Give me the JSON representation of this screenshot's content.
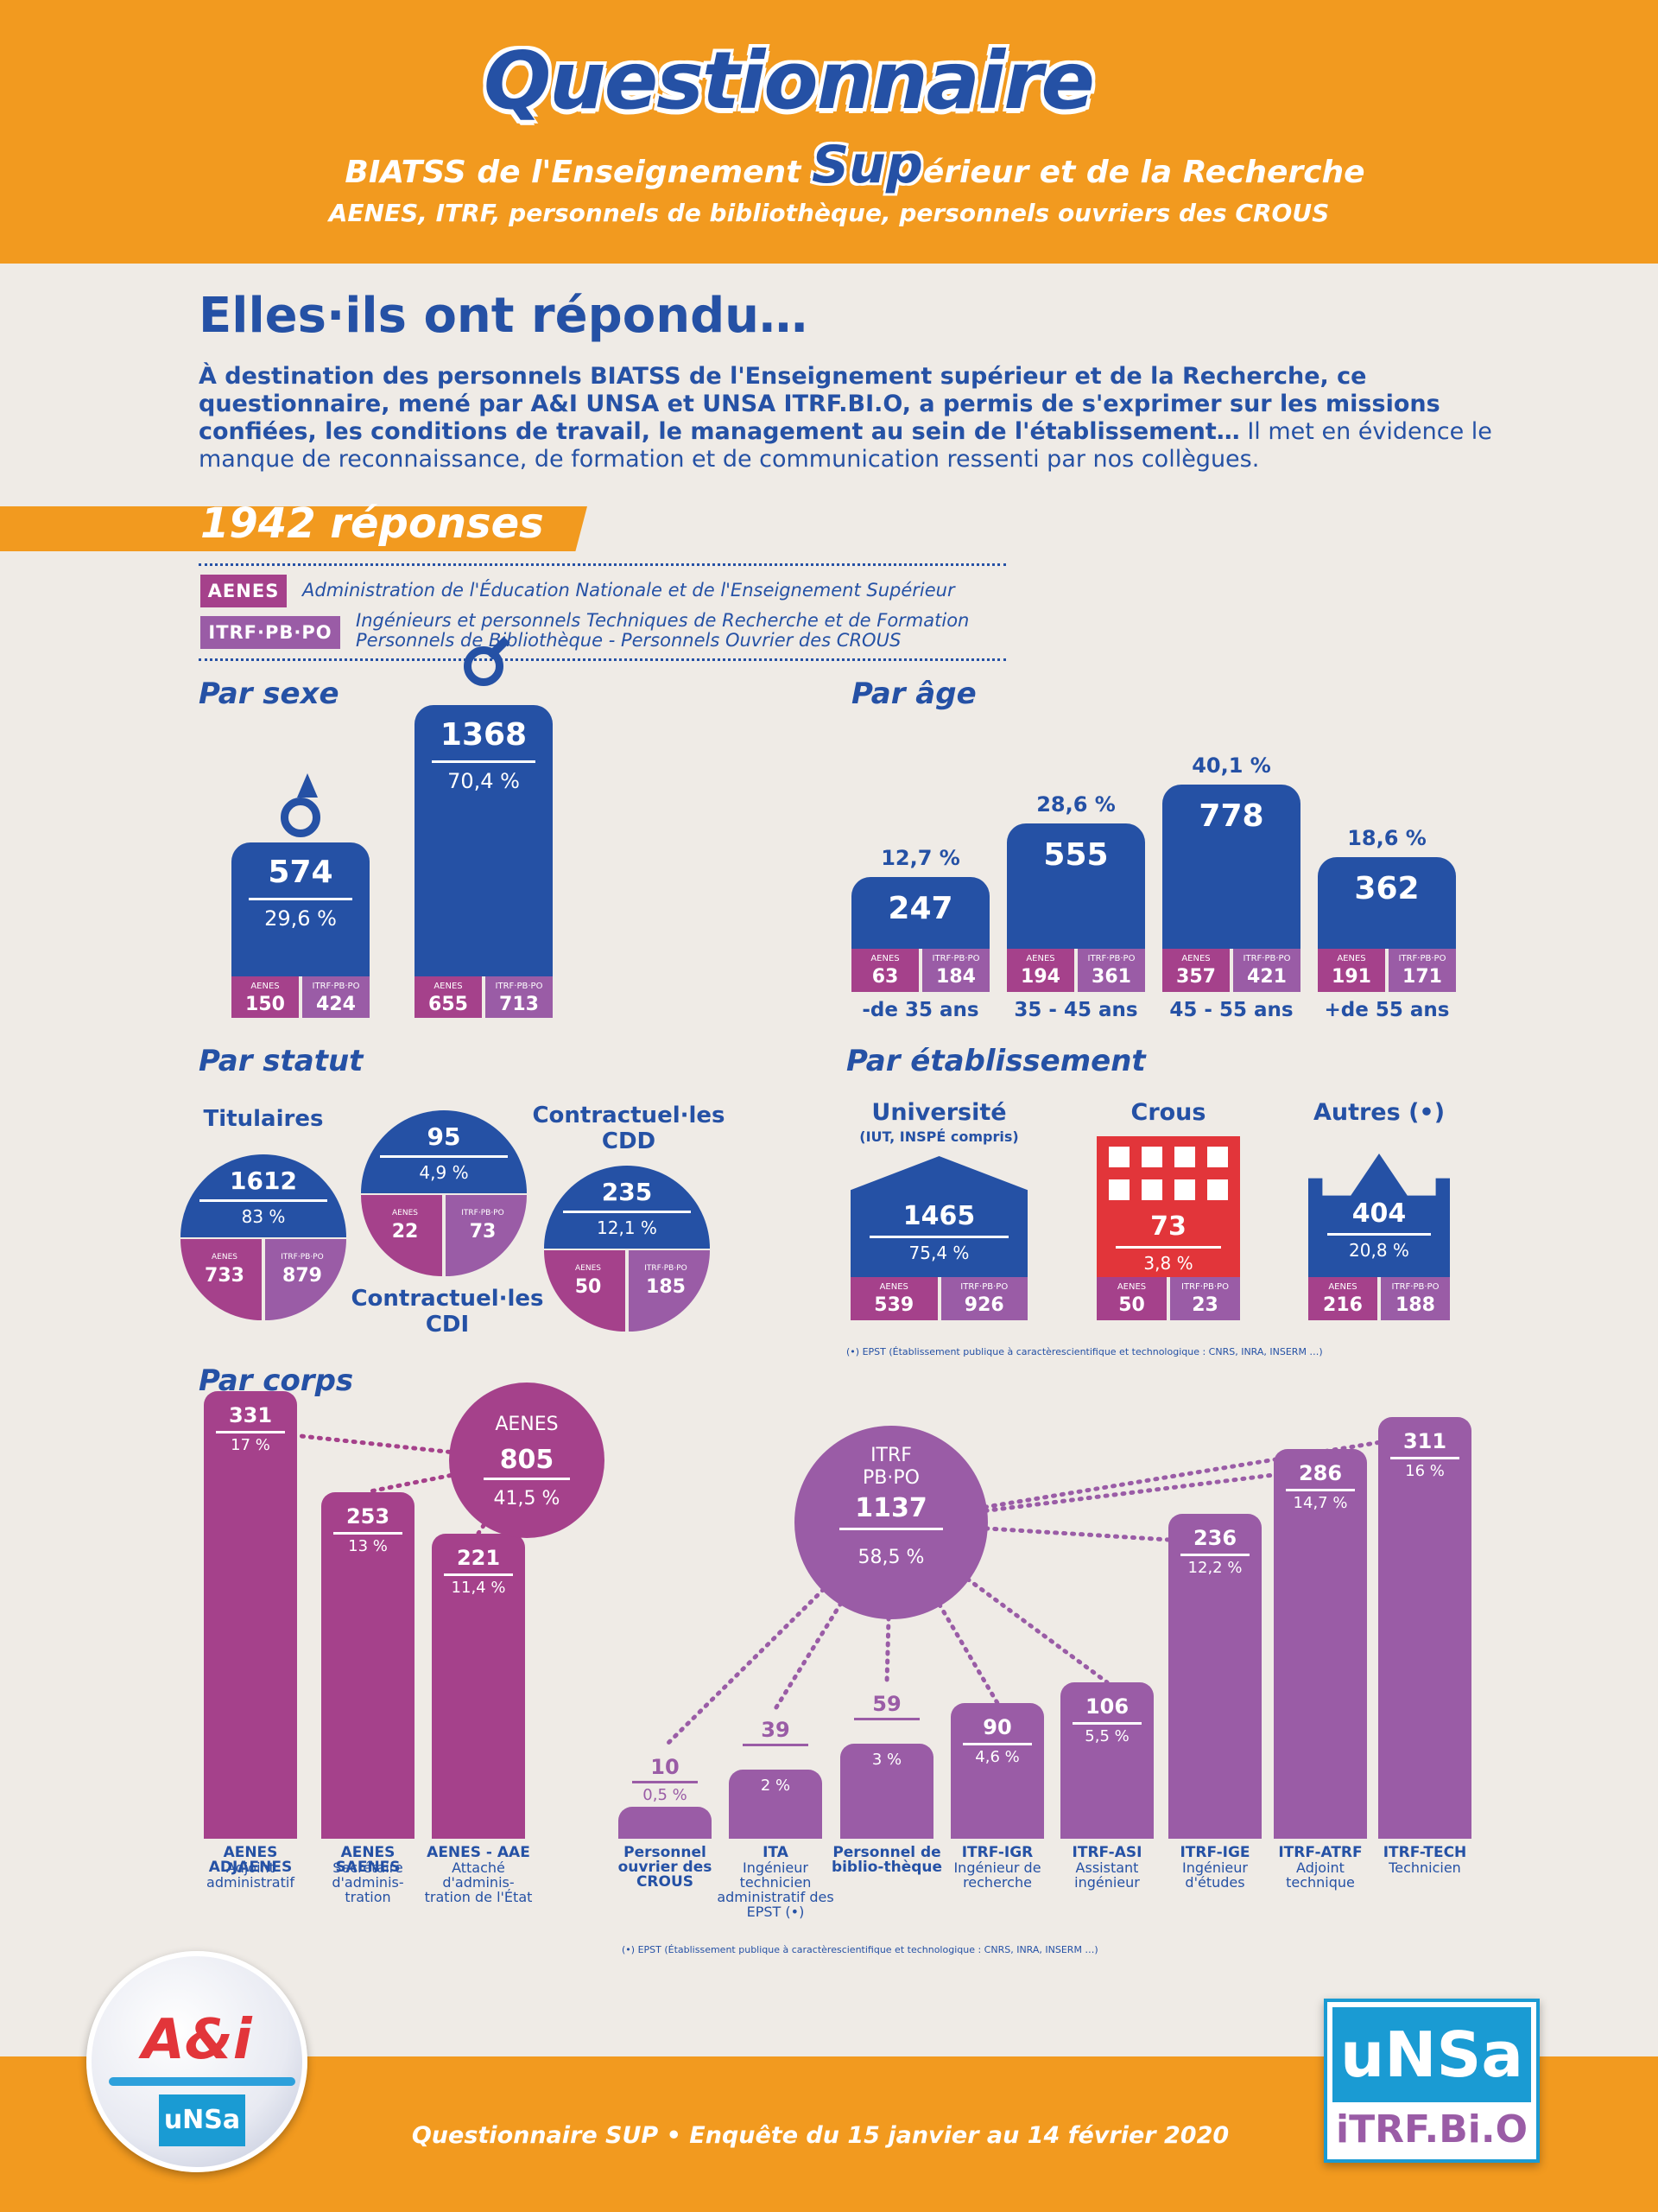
{
  "header": {
    "title": "Questionnaire",
    "subtitle_left": "BIATSS de l'Enseignement",
    "subtitle_sup": "Sup",
    "subtitle_right": "érieur et de la Recherche",
    "subtitle2": "AENES, ITRF, personnels de bibliothèque, personnels ouvriers des CROUS"
  },
  "title": "Elles·ils ont répondu…",
  "intro": {
    "bold_text": "À destination des personnels BIATSS de l'Enseignement supérieur et de la Recherche, ce questionnaire, mené par A&I UNSA et UNSA ITRF.BI.O, a permis de s'exprimer sur les missions confiées, les conditions de travail, le management au sein de l'établissement…",
    "text": " Il met en évidence le manque de reconnaissance, de formation et de communication ressenti par nos collègues."
  },
  "total_label": "1942 réponses",
  "legend": {
    "aenes_badge": "AENES",
    "aenes_text": "Administration de l'Éducation Nationale et de l'Enseignement Supérieur",
    "itrf_badge": "ITRF·PB·PO",
    "itrf_text1": "Ingénieurs et personnels Techniques de Recherche et de Formation",
    "itrf_text2": "Personnels de Bibliothèque - Personnels Ouvrier des CROUS"
  },
  "colors": {
    "blue": "#2551a5",
    "aenes": "#a5418b",
    "itrf": "#9a5ca6",
    "orange": "#f29a1f",
    "red": "#e2353a"
  },
  "small_labels": {
    "aenes": "AENES",
    "itrf": "ITRF·PB·PO"
  },
  "chart_data": [
    {
      "type": "bar",
      "title": "Par sexe",
      "categories": [
        "Hommes",
        "Femmes"
      ],
      "icons": [
        "male-icon",
        "female-icon"
      ],
      "values": [
        574,
        1368
      ],
      "percents": [
        "29,6 %",
        "70,4 %"
      ],
      "aenes": [
        150,
        655
      ],
      "itrf": [
        424,
        713
      ]
    },
    {
      "type": "bar",
      "title": "Par âge",
      "categories": [
        "-de 35 ans",
        "35 - 45 ans",
        "45 - 55 ans",
        "+de 55 ans"
      ],
      "values": [
        247,
        555,
        778,
        362
      ],
      "percents": [
        "12,7 %",
        "28,6 %",
        "40,1 %",
        "18,6 %"
      ],
      "aenes": [
        63,
        194,
        357,
        191
      ],
      "itrf": [
        184,
        361,
        421,
        171
      ]
    },
    {
      "type": "pie",
      "title": "Par statut",
      "categories": [
        "Titulaires",
        "Contractuel·les CDI",
        "Contractuel·les CDD"
      ],
      "values": [
        1612,
        95,
        235
      ],
      "percents": [
        "83 %",
        "4,9 %",
        "12,1 %"
      ],
      "aenes": [
        733,
        22,
        50
      ],
      "itrf": [
        879,
        73,
        185
      ]
    },
    {
      "type": "bar",
      "title": "Par établissement",
      "categories": [
        "Université",
        "Crous",
        "Autres"
      ],
      "category_notes": [
        "(IUT, INSPÉ compris)",
        "",
        "(•)"
      ],
      "values": [
        1465,
        73,
        404
      ],
      "percents": [
        "75,4 %",
        "3,8 %",
        "20,8 %"
      ],
      "aenes": [
        539,
        50,
        216
      ],
      "itrf": [
        926,
        23,
        188
      ],
      "footnote": "(•) EPST (Établissement publique à caractèrescientifique et technologique : CNRS, INRA, INSERM …)"
    },
    {
      "type": "bar",
      "title": "Par corps",
      "groups": [
        {
          "name": "AENES",
          "value": 805,
          "percent": "41,5 %"
        },
        {
          "name_line1": "ITRF",
          "name_line2": "PB·PO",
          "value": 1137,
          "percent": "58,5 %"
        }
      ],
      "bars": [
        {
          "value": 331,
          "percent": "17 %",
          "code": "AENES ADJAENES",
          "desc": "Adjoint administratif",
          "group": "aenes"
        },
        {
          "value": 253,
          "percent": "13 %",
          "code": "AENES SAENES",
          "desc": "Secrétaire d'adminis-tration",
          "group": "aenes"
        },
        {
          "value": 221,
          "percent": "11,4 %",
          "code": "AENES - AAE",
          "desc": "Attaché d'adminis-tration de l'État",
          "group": "aenes"
        },
        {
          "value": 10,
          "percent": "0,5 %",
          "code": "Personnel ouvrier des CROUS",
          "desc": "",
          "group": "itrf"
        },
        {
          "value": 39,
          "percent": "2 %",
          "code": "ITA",
          "desc": "Ingénieur technicien administratif des EPST (•)",
          "group": "itrf"
        },
        {
          "value": 59,
          "percent": "3 %",
          "code": "Personnel de biblio-thèque",
          "desc": "",
          "group": "itrf"
        },
        {
          "value": 90,
          "percent": "4,6 %",
          "code": "ITRF-IGR",
          "desc": "Ingénieur de recherche",
          "group": "itrf"
        },
        {
          "value": 106,
          "percent": "5,5 %",
          "code": "ITRF-ASI",
          "desc": "Assistant ingénieur",
          "group": "itrf"
        },
        {
          "value": 236,
          "percent": "12,2 %",
          "code": "ITRF-IGE",
          "desc": "Ingénieur d'études",
          "group": "itrf"
        },
        {
          "value": 286,
          "percent": "14,7 %",
          "code": "ITRF-ATRF",
          "desc": "Adjoint technique",
          "group": "itrf"
        },
        {
          "value": 311,
          "percent": "16 %",
          "code": "ITRF-TECH",
          "desc": "Technicien",
          "group": "itrf"
        }
      ],
      "footnote": "(•) EPST (Établissement publique à caractèrescientifique et technologique : CNRS, INRA, INSERM …)"
    }
  ],
  "footer": "Questionnaire SUP  •  Enquête du 15 janvier au 14 février 2020",
  "logos": {
    "left": "A&i",
    "left_sub": "uNSa",
    "right_top": "uNSa",
    "right_bottom": "iTRF.Bi.O"
  }
}
